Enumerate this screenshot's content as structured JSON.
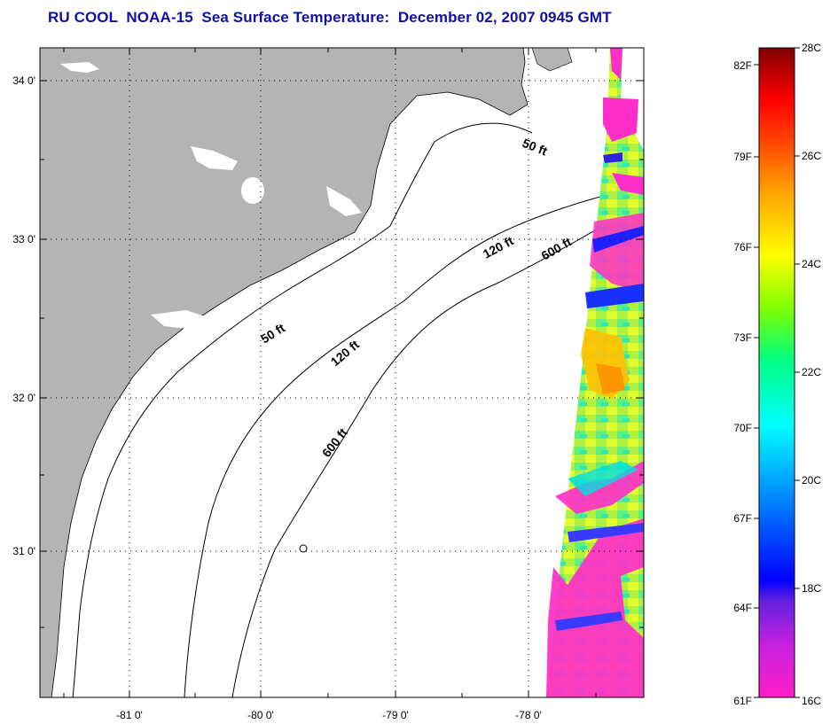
{
  "title": "RU COOL  NOAA-15  Sea Surface Temperature:  December 02, 2007 0945 GMT",
  "map": {
    "lat_labels": [
      "34 0'",
      "33 0'",
      "32 0'",
      "31 0'"
    ],
    "lon_labels": [
      "-81 0'",
      "-80 0'",
      "-79 0'",
      "-78 0'"
    ],
    "lat_range": [
      30.1,
      34.2
    ],
    "lon_range": [
      -81.6,
      -77.35
    ],
    "grid": "dotted",
    "land_color": "#b4b4b4",
    "contour_labels": [
      {
        "text": "50 ft",
        "id": "contour-50ft-north"
      },
      {
        "text": "120 ft",
        "id": "contour-120ft-north"
      },
      {
        "text": "600 ft",
        "id": "contour-600ft-north"
      },
      {
        "text": "50 ft",
        "id": "contour-50ft-south"
      },
      {
        "text": "120 ft",
        "id": "contour-120ft-south"
      },
      {
        "text": "600 ft",
        "id": "contour-600ft-south"
      }
    ]
  },
  "colorbar": {
    "fahrenheit_labels": [
      "82F",
      "79F",
      "76F",
      "73F",
      "70F",
      "67F",
      "64F",
      "61F"
    ],
    "celsius_labels": [
      "28C",
      "26C",
      "24C",
      "22C",
      "20C",
      "18C",
      "16C"
    ],
    "range_c": [
      16,
      28
    ],
    "colors": [
      "#ff20c8",
      "#a020e0",
      "#0000ff",
      "#00a0ff",
      "#00ffff",
      "#00ff60",
      "#80ff00",
      "#ffff00",
      "#ffa000",
      "#ff4000",
      "#ff0000",
      "#b00000",
      "#800000"
    ]
  }
}
